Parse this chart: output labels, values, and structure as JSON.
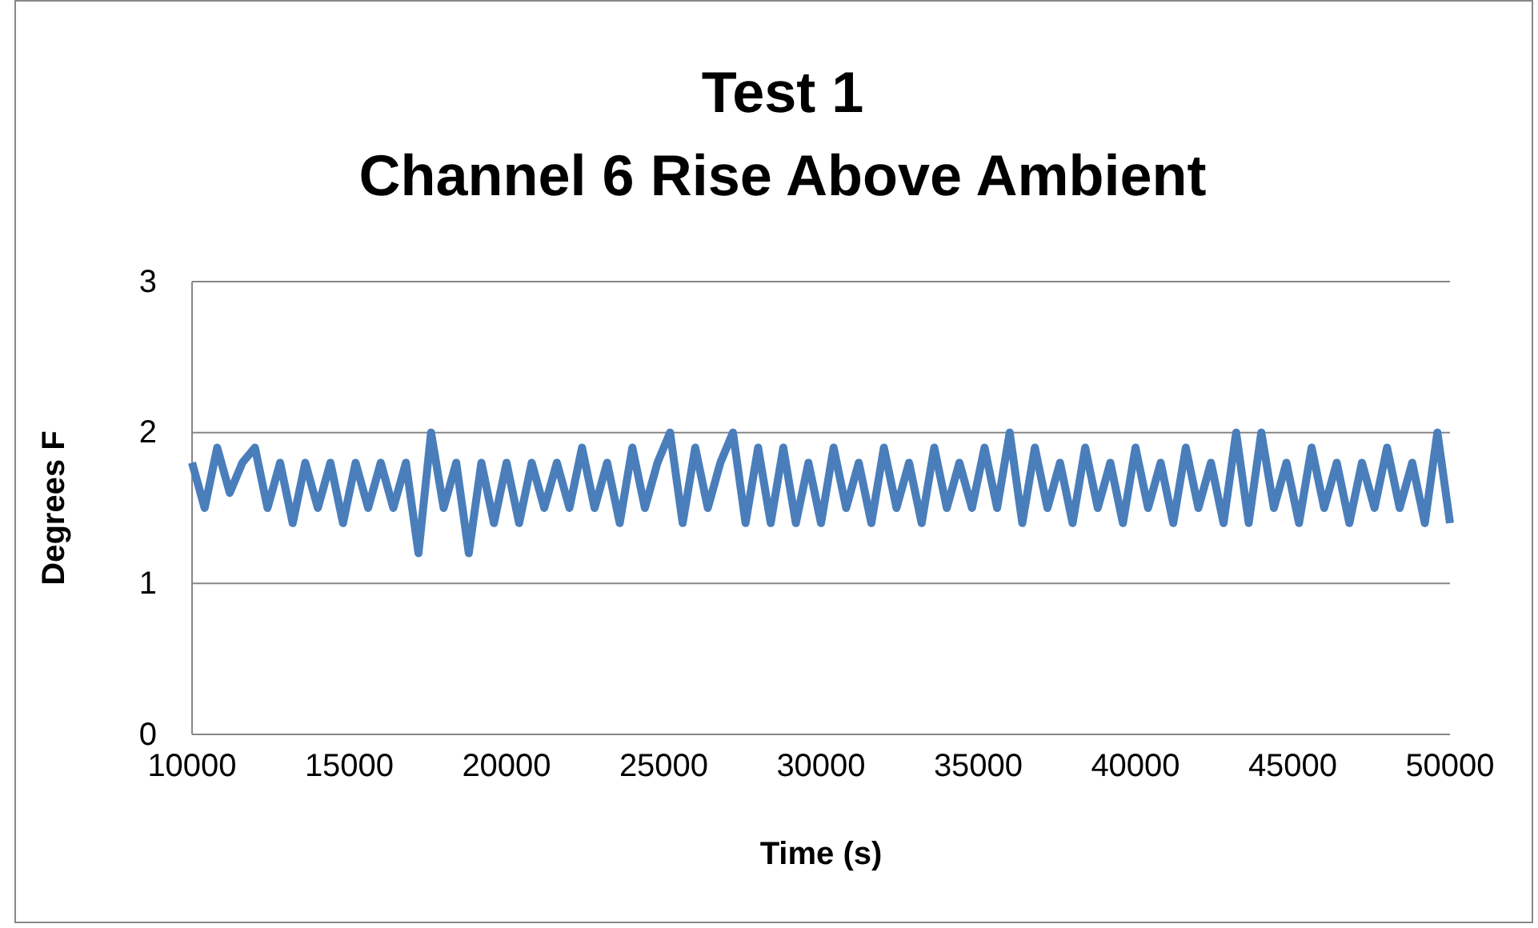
{
  "chart_data": {
    "type": "line",
    "title": "Test 1\nChannel 6 Rise Above Ambient",
    "xlabel": "Time (s)",
    "ylabel": "Degrees F",
    "xlim": [
      10000,
      50000
    ],
    "xticks": [
      10000,
      15000,
      20000,
      25000,
      30000,
      35000,
      40000,
      45000,
      50000
    ],
    "ylim": [
      0,
      3
    ],
    "yticks": [
      0,
      1,
      2,
      3
    ],
    "grid": "y",
    "marker": "none",
    "line_style": "solid",
    "series": [
      {
        "color": "#4a7ebb",
        "x": [
          10000,
          10400,
          10800,
          11200,
          11600,
          12000,
          12400,
          12800,
          13200,
          13600,
          14000,
          14400,
          14800,
          15200,
          15600,
          16000,
          16400,
          16800,
          17200,
          17600,
          18000,
          18400,
          18800,
          19200,
          19600,
          20000,
          20400,
          20800,
          21200,
          21600,
          22000,
          22400,
          22800,
          23200,
          23600,
          24000,
          24400,
          24800,
          25200,
          25600,
          26000,
          26400,
          26800,
          27200,
          27600,
          28000,
          28400,
          28800,
          29200,
          29600,
          30000,
          30400,
          30800,
          31200,
          31600,
          32000,
          32400,
          32800,
          33200,
          33600,
          34000,
          34400,
          34800,
          35200,
          35600,
          36000,
          36400,
          36800,
          37200,
          37600,
          38000,
          38400,
          38800,
          39200,
          39600,
          40000,
          40400,
          40800,
          41200,
          41600,
          42000,
          42400,
          42800,
          43200,
          43600,
          44000,
          44400,
          44800,
          45200,
          45600,
          46000,
          46400,
          46800,
          47200,
          47600,
          48000,
          48400,
          48800,
          49200,
          49600,
          50000
        ],
        "values": [
          1.8,
          1.5,
          1.9,
          1.6,
          1.8,
          1.9,
          1.5,
          1.8,
          1.4,
          1.8,
          1.5,
          1.8,
          1.4,
          1.8,
          1.5,
          1.8,
          1.5,
          1.8,
          1.2,
          2.0,
          1.5,
          1.8,
          1.2,
          1.8,
          1.4,
          1.8,
          1.4,
          1.8,
          1.5,
          1.8,
          1.5,
          1.9,
          1.5,
          1.8,
          1.4,
          1.9,
          1.5,
          1.8,
          2.0,
          1.4,
          1.9,
          1.5,
          1.8,
          2.0,
          1.4,
          1.9,
          1.4,
          1.9,
          1.4,
          1.8,
          1.4,
          1.9,
          1.5,
          1.8,
          1.4,
          1.9,
          1.5,
          1.8,
          1.4,
          1.9,
          1.5,
          1.8,
          1.5,
          1.9,
          1.5,
          2.0,
          1.4,
          1.9,
          1.5,
          1.8,
          1.4,
          1.9,
          1.5,
          1.8,
          1.4,
          1.9,
          1.5,
          1.8,
          1.4,
          1.9,
          1.5,
          1.8,
          1.4,
          2.0,
          1.4,
          2.0,
          1.5,
          1.8,
          1.4,
          1.9,
          1.5,
          1.8,
          1.4,
          1.8,
          1.5,
          1.9,
          1.5,
          1.8,
          1.4,
          2.0,
          1.4
        ]
      }
    ]
  }
}
